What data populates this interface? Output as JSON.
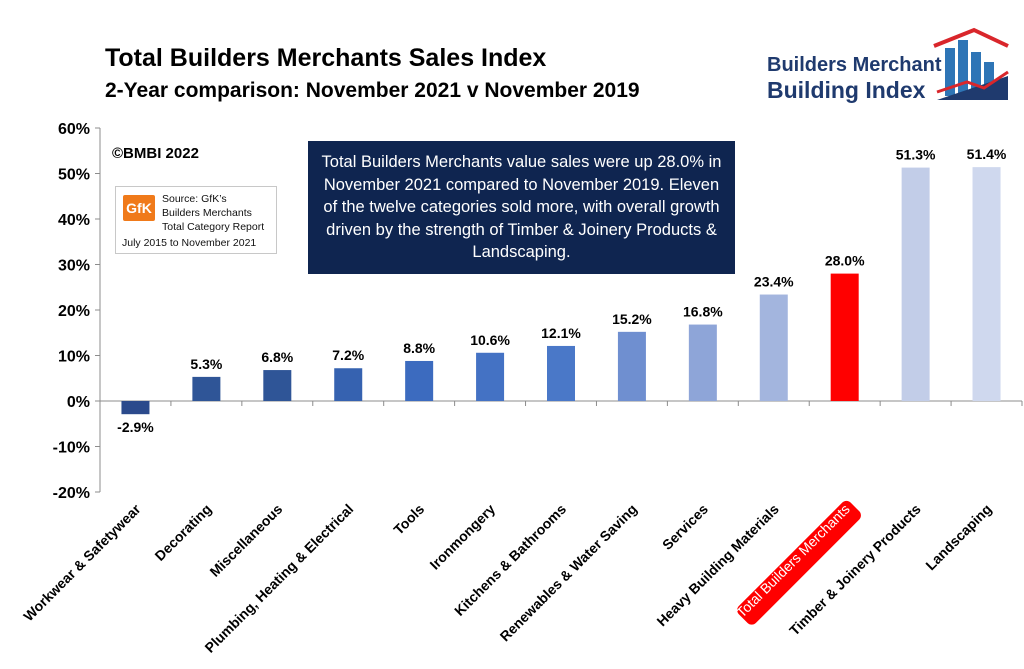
{
  "header": {
    "title": "Total Builders Merchants Sales Index",
    "subtitle": "2-Year comparison: November 2021 v November 2019"
  },
  "logo": {
    "line1": "Builders Merchant",
    "line2": "Building Index",
    "icon": "house-bar-chart-logo",
    "colors": {
      "navy": "#1f3a6e",
      "red": "#d9262b",
      "blue": "#2e75b6"
    }
  },
  "copyright": "©BMBI 2022",
  "source": {
    "badge": "GfK",
    "lines": [
      "Source: GfK’s",
      "Builders Merchants",
      "Total Category Report",
      "July 2015 to November 2021"
    ]
  },
  "annotation": "Total Builders Merchants value sales were up 28.0% in November 2021 compared to November 2019. Eleven of the twelve categories sold more, with overall growth driven by the strength of Timber & Joinery Products & Landscaping.",
  "chart_data": {
    "type": "bar",
    "title": "Total Builders Merchants Sales Index",
    "subtitle": "2-Year comparison: November 2021 v November 2019",
    "ylabel": "",
    "xlabel": "",
    "ylim": [
      -20,
      60
    ],
    "yticks": [
      -20,
      -10,
      0,
      10,
      20,
      30,
      40,
      50,
      60
    ],
    "ytick_labels": [
      "-20%",
      "-10%",
      "0%",
      "10%",
      "20%",
      "30%",
      "40%",
      "50%",
      "60%"
    ],
    "grid": false,
    "categories": [
      "Workwear & Safetywear",
      "Decorating",
      "Miscellaneous",
      "Plumbing, Heating & Electrical",
      "Tools",
      "Ironmongery",
      "Kitchens & Bathrooms",
      "Renewables & Water Saving",
      "Services",
      "Heavy Building Materials",
      "Total Builders Merchants",
      "Timber & Joinery Products",
      "Landscaping"
    ],
    "values": [
      -2.9,
      5.3,
      6.8,
      7.2,
      8.8,
      10.6,
      12.1,
      15.2,
      16.8,
      23.4,
      28.0,
      51.3,
      51.4
    ],
    "value_labels": [
      "-2.9%",
      "5.3%",
      "6.8%",
      "7.2%",
      "8.8%",
      "10.6%",
      "12.1%",
      "15.2%",
      "16.8%",
      "23.4%",
      "28.0%",
      "51.3%",
      "51.4%"
    ],
    "colors": [
      "#2b4a8c",
      "#2f5597",
      "#2f5597",
      "#3662b0",
      "#3c6bbf",
      "#4472c4",
      "#4a78c8",
      "#6f8fd0",
      "#8ea5d8",
      "#a3b5de",
      "#ff0000",
      "#c2cde8",
      "#cfd8ee"
    ],
    "highlight_category": "Total Builders Merchants",
    "highlight_color": "#ff0000"
  }
}
